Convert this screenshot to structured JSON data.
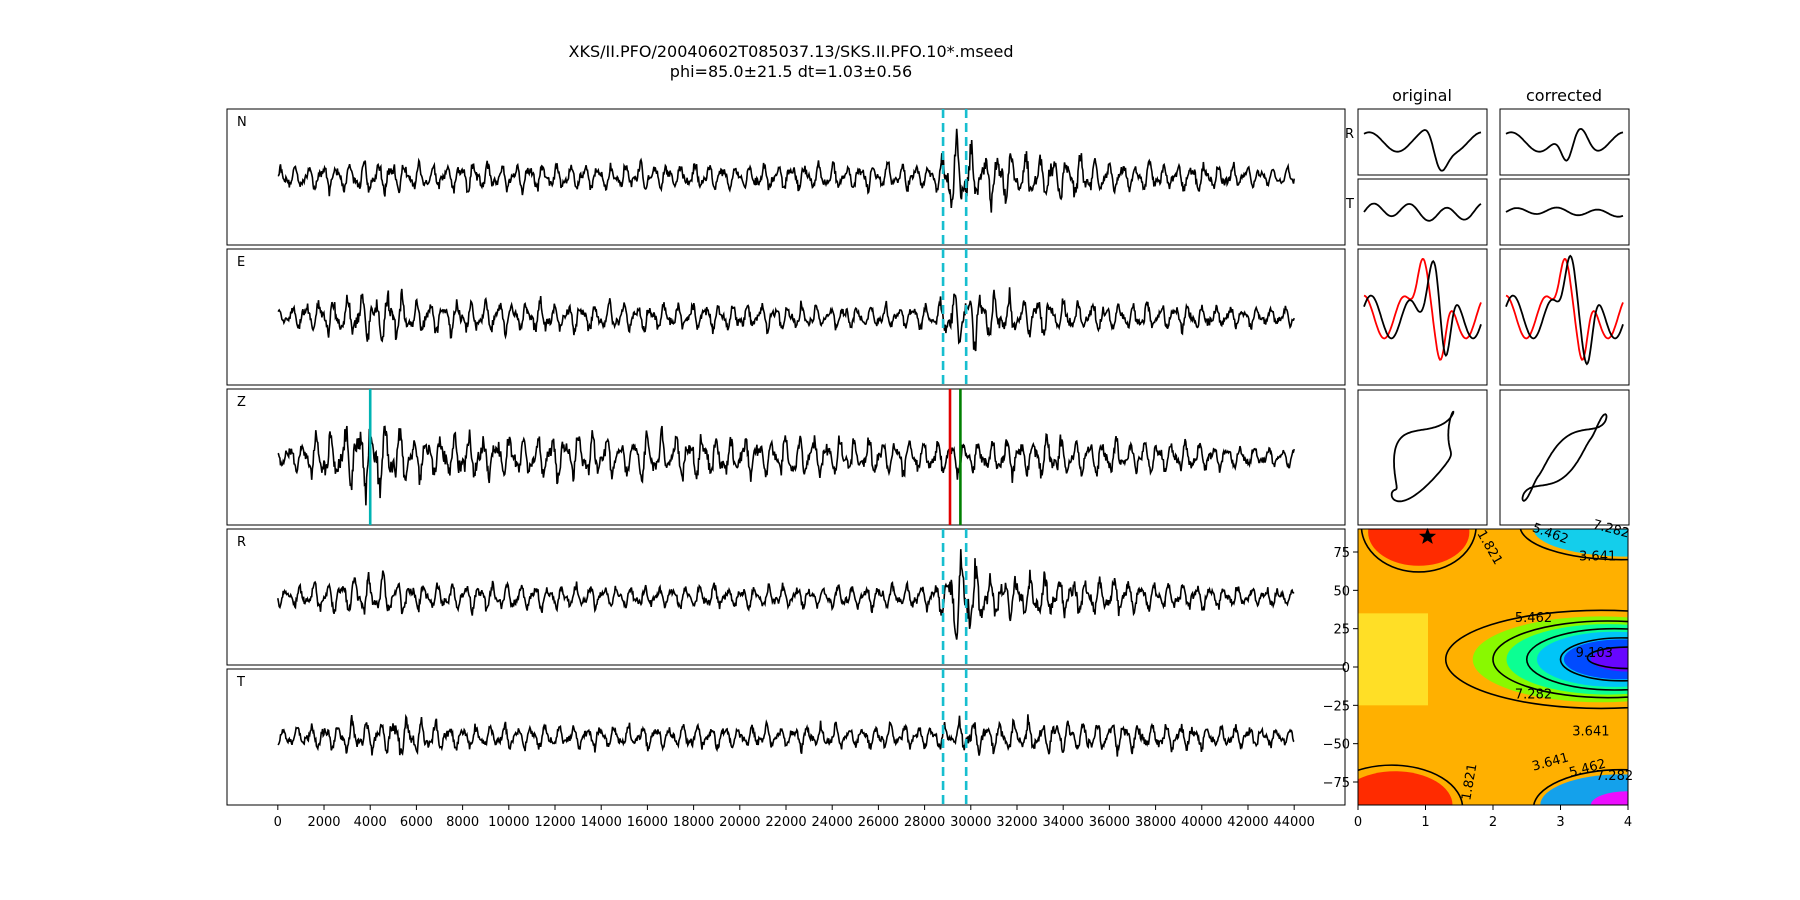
{
  "figure": {
    "title": "XKS/II.PFO/20040602T085037.13/SKS.II.PFO.10*.mseed",
    "subtitle": "phi=85.0±21.5 dt=1.03±0.56"
  },
  "chart_data": [
    {
      "type": "line",
      "panel": "traces",
      "x_ticks": [
        "0",
        "2000",
        "4000",
        "6000",
        "8000",
        "10000",
        "12000",
        "14000",
        "16000",
        "18000",
        "20000",
        "22000",
        "24000",
        "26000",
        "28000",
        "30000",
        "32000",
        "34000",
        "36000",
        "38000",
        "40000",
        "42000",
        "44000"
      ],
      "xlim": [
        -2200,
        46200
      ],
      "x_range": [
        0,
        44000
      ],
      "series": [
        {
          "name": "N"
        },
        {
          "name": "E"
        },
        {
          "name": "Z"
        },
        {
          "name": "R"
        },
        {
          "name": "T"
        }
      ],
      "window_markers": [
        28800,
        29800
      ],
      "window_color": "#17becf",
      "z_picks": [
        {
          "x": 4000,
          "color": "#00b3b3"
        },
        {
          "x": 29100,
          "color": "#e00000"
        },
        {
          "x": 29550,
          "color": "#007f00"
        }
      ]
    },
    {
      "type": "line",
      "panel": "particle-waveforms",
      "columns": [
        "original",
        "corrected"
      ],
      "rows": [
        "R",
        "T",
        "",
        ""
      ],
      "overlay_color": "#ff0000"
    },
    {
      "type": "heatmap",
      "panel": "error-surface",
      "x_ticks": [
        "0",
        "1",
        "2",
        "3",
        "4"
      ],
      "y_ticks": [
        "75",
        "50",
        "25",
        "0",
        "−25",
        "−50",
        "−75"
      ],
      "xlim": [
        0,
        4
      ],
      "ylim": [
        -90,
        90
      ],
      "contour_levels": [
        "1.821",
        "3.641",
        "5.462",
        "7.282",
        "9.103"
      ],
      "best_estimate": {
        "dt": 1.03,
        "phi": 85.0
      }
    }
  ]
}
